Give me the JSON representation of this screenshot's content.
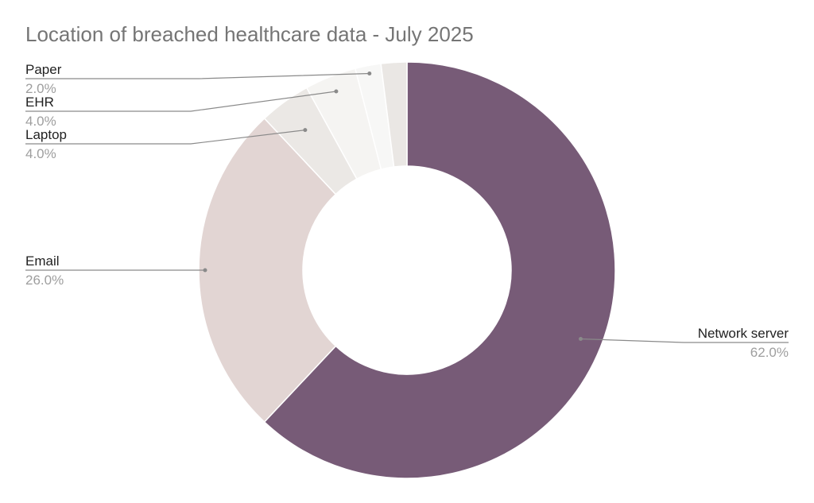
{
  "chart_data": {
    "type": "pie",
    "donut": true,
    "title": "Location of breached healthcare data - July 2025",
    "slices": [
      {
        "label": "Network server",
        "value": 62.0,
        "display": "62.0%",
        "color": "#775b77"
      },
      {
        "label": "Email",
        "value": 26.0,
        "display": "26.0%",
        "color": "#e2d5d3"
      },
      {
        "label": "Laptop",
        "value": 4.0,
        "display": "4.0%",
        "color": "#ebe8e5"
      },
      {
        "label": "EHR",
        "value": 4.0,
        "display": "4.0%",
        "color": "#f5f4f2"
      },
      {
        "label": "Paper",
        "value": 2.0,
        "display": "2.0%",
        "color": "#f7f7f6"
      },
      {
        "label": "",
        "value": 2.0,
        "display": "",
        "color": "#eae7e4"
      }
    ],
    "legend": "none",
    "label_style": "leader-lines"
  }
}
